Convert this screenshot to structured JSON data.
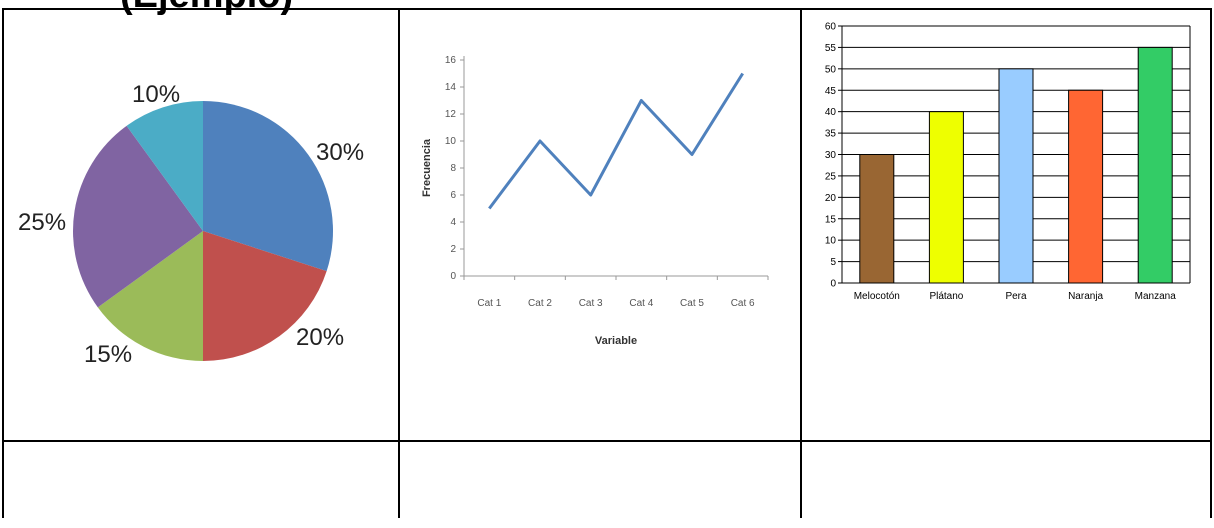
{
  "page": {
    "clipped_title": "(Ejemplo)"
  },
  "chart_data": [
    {
      "type": "pie",
      "title": "",
      "slices": [
        {
          "label": "30%",
          "value": 30,
          "color": "#4F81BD"
        },
        {
          "label": "20%",
          "value": 20,
          "color": "#C0504D"
        },
        {
          "label": "15%",
          "value": 15,
          "color": "#9BBB59"
        },
        {
          "label": "25%",
          "value": 25,
          "color": "#8064A2"
        },
        {
          "label": "10%",
          "value": 10,
          "color": "#4BACC6"
        }
      ],
      "start": "12 o'clock",
      "direction": "clockwise"
    },
    {
      "type": "line",
      "title": "",
      "xlabel": "Variable",
      "ylabel": "Frecuencia",
      "categories": [
        "Cat 1",
        "Cat 2",
        "Cat 3",
        "Cat 4",
        "Cat 5",
        "Cat 6"
      ],
      "series": [
        {
          "values": [
            5,
            10,
            6,
            13,
            9,
            15
          ],
          "color": "#4F81BD"
        }
      ],
      "ylim": [
        0,
        16
      ],
      "yticks": [
        "0",
        "2",
        "4",
        "6",
        "8",
        "10",
        "12",
        "14",
        "16"
      ],
      "grid": false
    },
    {
      "type": "bar",
      "title": "",
      "xlabel": "",
      "ylabel": "",
      "categories": [
        "Melocotón",
        "Plátano",
        "Pera",
        "Naranja",
        "Manzana"
      ],
      "values": [
        30,
        40,
        50,
        45,
        55
      ],
      "colors": [
        "#996633",
        "#EEFF00",
        "#99CCFF",
        "#FF6633",
        "#33CC66"
      ],
      "ylim": [
        0,
        60
      ],
      "yticks": [
        "0",
        "5",
        "10",
        "15",
        "20",
        "25",
        "30",
        "35",
        "40",
        "45",
        "50",
        "55",
        "60"
      ],
      "grid": true
    }
  ]
}
